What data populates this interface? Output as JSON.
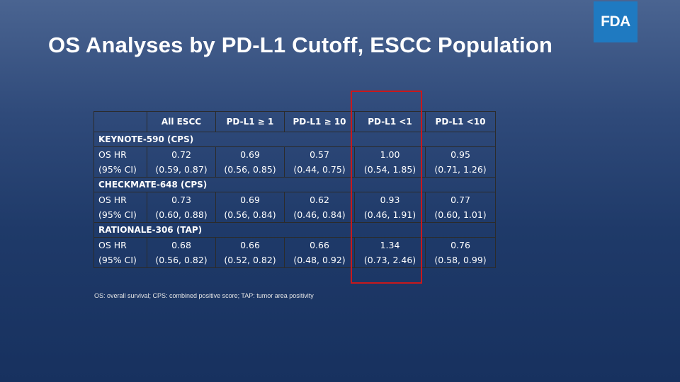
{
  "slide": {
    "title": "OS Analyses by PD-L1 Cutoff,  ESCC Population",
    "logo_text": "FDA",
    "footnote": "OS: overall survival; CPS: combined positive score; TAP: tumor area positivity"
  },
  "table": {
    "headers": [
      "",
      "All ESCC",
      "PD-L1 ≥ 1",
      "PD-L1 ≥ 10",
      "PD-L1 <1",
      "PD-L1 <10"
    ],
    "groups": [
      {
        "name": "KEYNOTE-590 (CPS)",
        "row1": [
          "OS HR",
          "0.72",
          "0.69",
          "0.57",
          "1.00",
          "0.95"
        ],
        "row2": [
          "(95% CI)",
          "(0.59, 0.87)",
          "(0.56, 0.85)",
          "(0.44, 0.75)",
          "(0.54, 1.85)",
          "(0.71, 1.26)"
        ]
      },
      {
        "name": "CHECKMATE-648 (CPS)",
        "row1": [
          "OS HR",
          "0.73",
          "0.69",
          "0.62",
          "0.93",
          "0.77"
        ],
        "row2": [
          "(95% CI)",
          "(0.60, 0.88)",
          "(0.56, 0.84)",
          "(0.46, 0.84)",
          "(0.46, 1.91)",
          "(0.60, 1.01)"
        ]
      },
      {
        "name": "RATIONALE-306 (TAP)",
        "row1": [
          "OS HR",
          "0.68",
          "0.66",
          "0.66",
          "1.34",
          "0.76"
        ],
        "row2": [
          "(95% CI)",
          "(0.56, 0.82)",
          "(0.52, 0.82)",
          "(0.48, 0.92)",
          "(0.73, 2.46)",
          "(0.58, 0.99)"
        ]
      }
    ]
  },
  "colors": {
    "highlight_box": "#c8191c",
    "logo_bg": "#1f7ac1"
  }
}
